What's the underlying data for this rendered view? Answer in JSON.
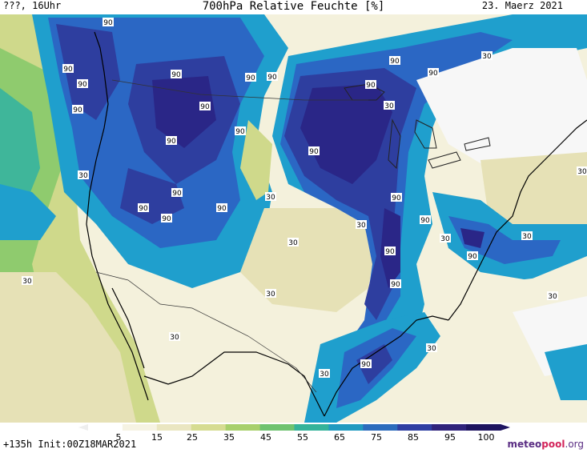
{
  "header": {
    "left_text": "???, 16Uhr",
    "title": "700hPa Relative Feuchte [%]",
    "date": "23. Maerz 2021"
  },
  "footer": {
    "init_text": "+135h Init:00Z18MAR2021",
    "brand_m": "meteo",
    "brand_p": "pool",
    "brand_o": ".org"
  },
  "colorbar": {
    "labels": [
      "5",
      "15",
      "25",
      "35",
      "45",
      "55",
      "65",
      "75",
      "85",
      "95",
      "100"
    ],
    "colors": [
      "#ffffff",
      "#f6f3e3",
      "#eae6c1",
      "#d6dc92",
      "#a8d06c",
      "#6fc370",
      "#34b39a",
      "#219ac0",
      "#2c6cbd",
      "#2f3fa3",
      "#30247c",
      "#1e1560"
    ]
  },
  "contour_labels": [
    "90",
    "30"
  ],
  "map_colors": {
    "dry": "#f4f1dc",
    "sand": "#e6e1b6",
    "yellowgreen": "#cfd98b",
    "green": "#8fcb6e",
    "teal": "#3fb69a",
    "cyan": "#1f9fcd",
    "blue": "#2b67c4",
    "darkblue": "#2e3e9f",
    "indigo": "#2a2687",
    "deep": "#1d176a",
    "white": "#f7f7f7",
    "border": "#000000"
  }
}
